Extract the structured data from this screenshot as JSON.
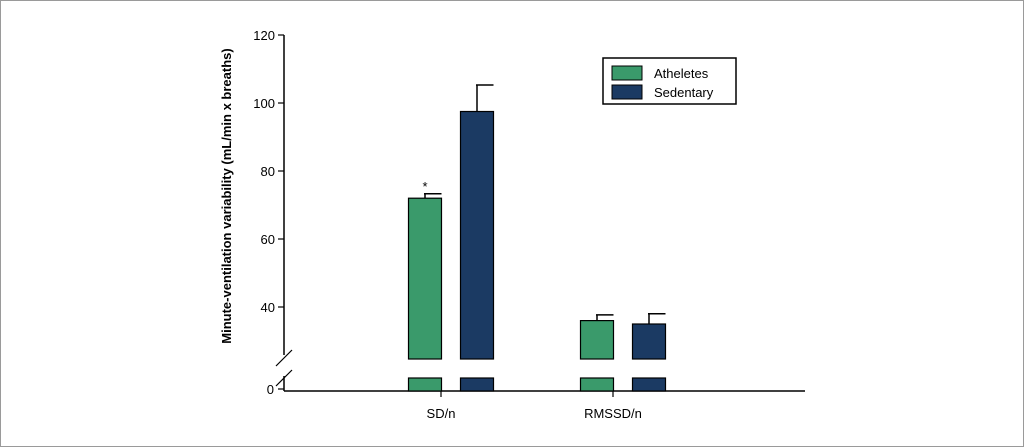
{
  "chart_data": {
    "type": "bar",
    "title": "",
    "xlabel": "",
    "ylabel": "Minute-ventilation variability (mL/min x breaths)",
    "ylim_upper": [
      20,
      120
    ],
    "y_ticks": [
      {
        "value": 40,
        "label": "40"
      },
      {
        "value": 60,
        "label": "60"
      },
      {
        "value": 80,
        "label": "80"
      },
      {
        "value": 100,
        "label": "100"
      },
      {
        "value": 120,
        "label": "120"
      }
    ],
    "y_zero_label": "0",
    "axis_break": true,
    "categories": [
      "SD/n",
      "RMSSD/n"
    ],
    "series": [
      {
        "name": "Atheletes",
        "color": "#3a9a6b",
        "values": [
          72,
          36
        ],
        "errors": [
          1.3,
          1.7
        ],
        "annotations": [
          "*",
          ""
        ]
      },
      {
        "name": "Sedentary",
        "color": "#1b3a63",
        "values": [
          97.5,
          35
        ],
        "errors": [
          7.8,
          3.0
        ],
        "annotations": [
          "",
          ""
        ]
      }
    ],
    "legend_position": "top-right",
    "grid": false
  }
}
